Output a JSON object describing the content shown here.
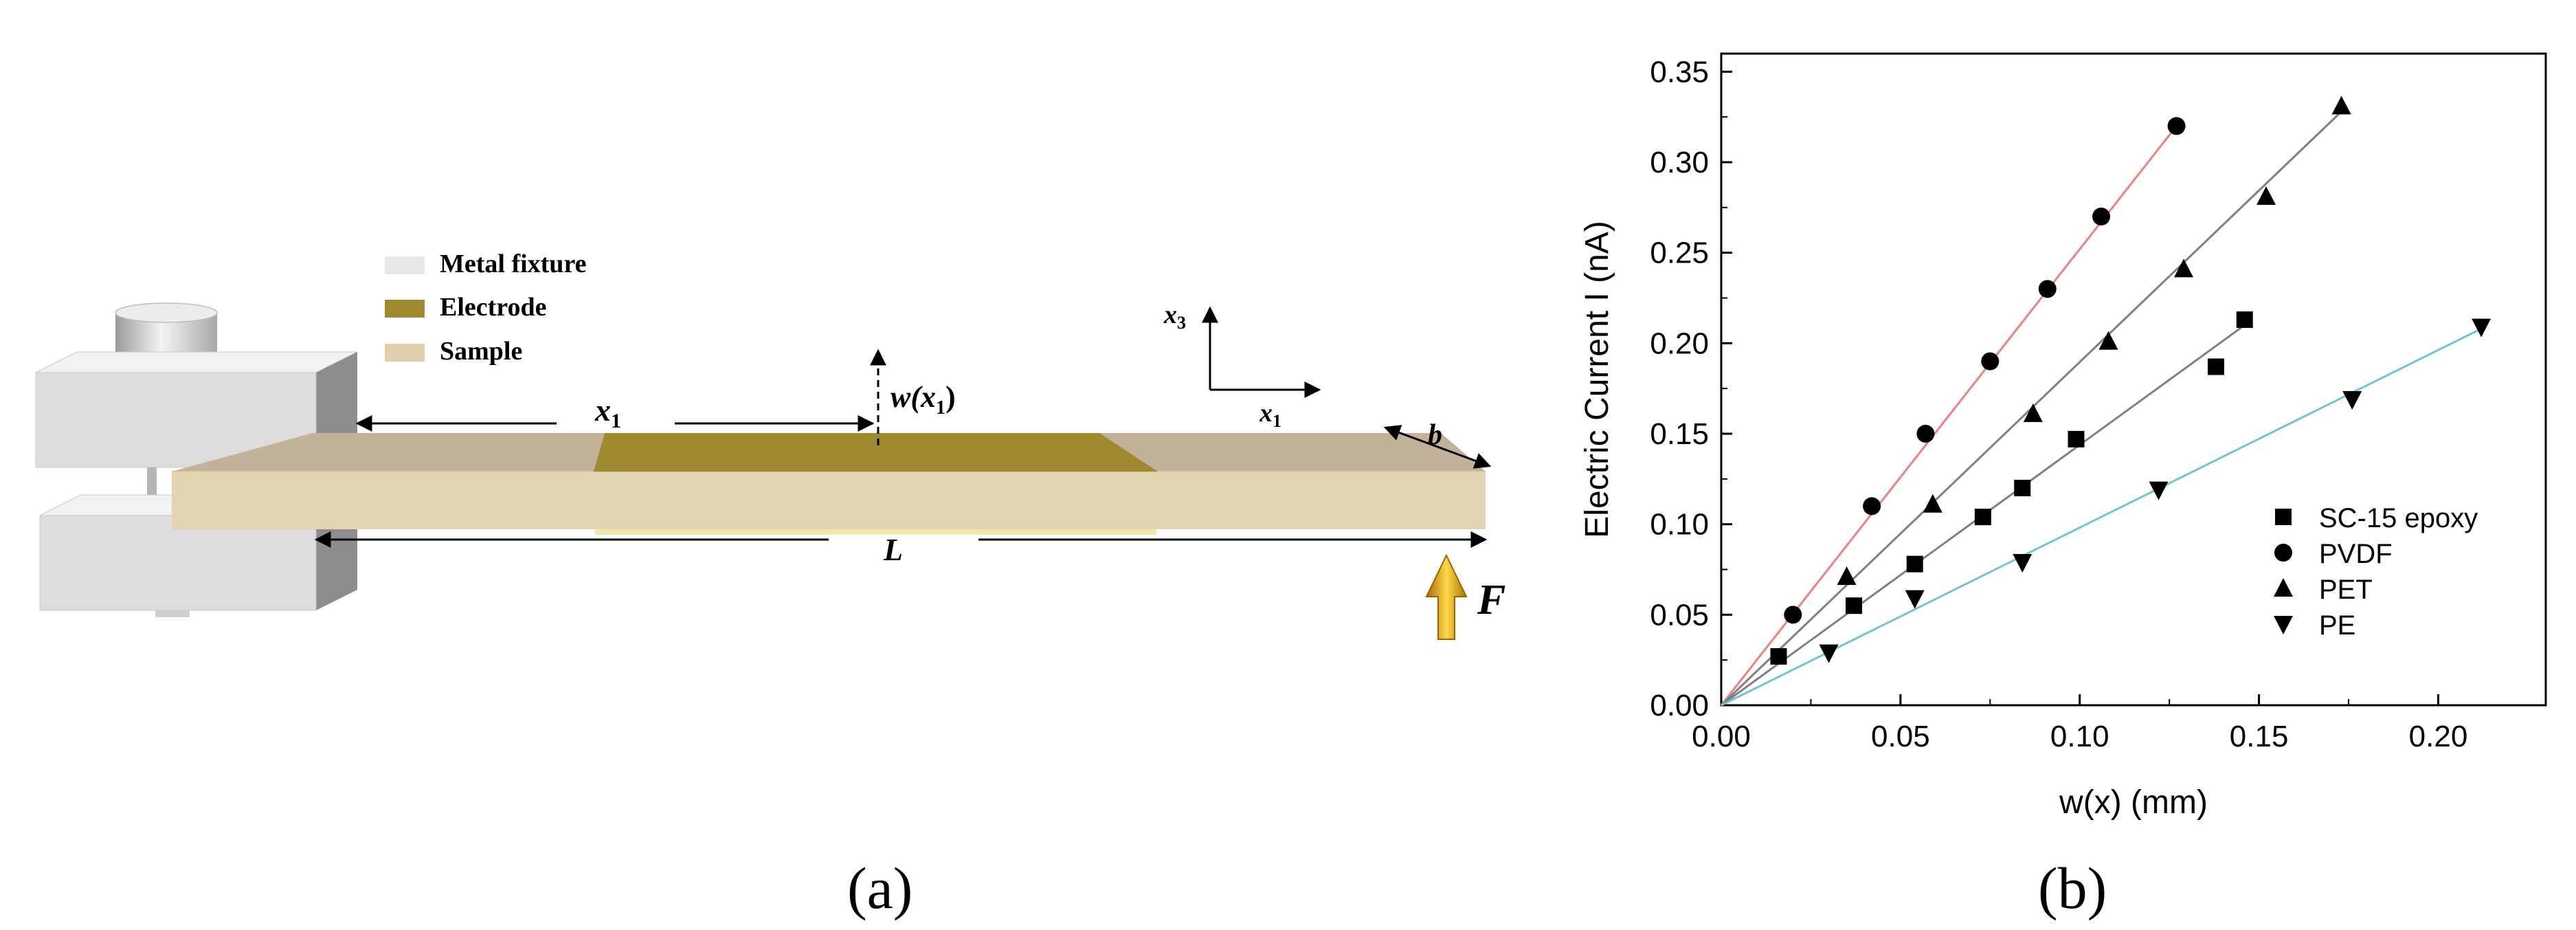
{
  "panel_a": {
    "label": "(a)",
    "legend": [
      {
        "text": "Metal fixture",
        "color": "#e8e8e8"
      },
      {
        "text": "Electrode",
        "color": "#a08a30"
      },
      {
        "text": "Sample",
        "color": "#e0cfac"
      }
    ],
    "annotations": {
      "x1_left": "x",
      "x1_left_sub": "1",
      "w_label": "w(x",
      "w_label_sub": "1",
      "w_label_close": ")",
      "axis_x3": "x",
      "axis_x3_sub": "3",
      "axis_x1": "x",
      "axis_x1_sub": "1",
      "b_label": "b",
      "L_label": "L",
      "F_label": "F"
    },
    "colors": {
      "fixture": "#dedede",
      "fixture_side": "#8e8e8e",
      "electrode": "#a08a30",
      "sample_top": "#c2b29a",
      "sample_front": "#e3d4b2",
      "arrow": "#e0a800"
    }
  },
  "panel_b": {
    "label": "(b)"
  },
  "chart_data": {
    "type": "scatter",
    "xlabel": "w(x) (mm)",
    "ylabel": "Electric Current I (nA)",
    "xlim": [
      0,
      0.23
    ],
    "ylim": [
      0,
      0.36
    ],
    "xticks": [
      "0.00",
      "0.05",
      "0.10",
      "0.15",
      "0.20"
    ],
    "yticks": [
      "0.00",
      "0.05",
      "0.10",
      "0.15",
      "0.20",
      "0.25",
      "0.30",
      "0.35"
    ],
    "legend_position": "bottom-right",
    "grid": false,
    "series": [
      {
        "name": "SC-15 epoxy",
        "marker": "square",
        "x": [
          0.016,
          0.037,
          0.054,
          0.073,
          0.084,
          0.099,
          0.138,
          0.146
        ],
        "y": [
          0.027,
          0.055,
          0.078,
          0.104,
          0.12,
          0.147,
          0.187,
          0.213
        ],
        "fit": {
          "x": [
            0,
            0.146
          ],
          "y": [
            0,
            0.21
          ],
          "color": "#808080"
        }
      },
      {
        "name": "PVDF",
        "marker": "circle",
        "x": [
          0.02,
          0.042,
          0.057,
          0.075,
          0.091,
          0.106,
          0.127
        ],
        "y": [
          0.05,
          0.11,
          0.15,
          0.19,
          0.23,
          0.27,
          0.32
        ],
        "fit": {
          "x": [
            0,
            0.127
          ],
          "y": [
            0,
            0.32
          ],
          "color": "#f08080"
        }
      },
      {
        "name": "PET",
        "marker": "triangle-up",
        "x": [
          0.035,
          0.059,
          0.087,
          0.108,
          0.129,
          0.152,
          0.173
        ],
        "y": [
          0.071,
          0.111,
          0.161,
          0.201,
          0.241,
          0.281,
          0.331
        ],
        "fit": {
          "x": [
            0,
            0.173
          ],
          "y": [
            0,
            0.328
          ],
          "color": "#808080"
        }
      },
      {
        "name": "PE",
        "marker": "triangle-down",
        "x": [
          0.03,
          0.054,
          0.084,
          0.122,
          0.176,
          0.212
        ],
        "y": [
          0.029,
          0.059,
          0.079,
          0.119,
          0.169,
          0.209
        ],
        "fit": {
          "x": [
            0,
            0.212
          ],
          "y": [
            0,
            0.208
          ],
          "color": "#6ec6d0"
        }
      }
    ]
  }
}
